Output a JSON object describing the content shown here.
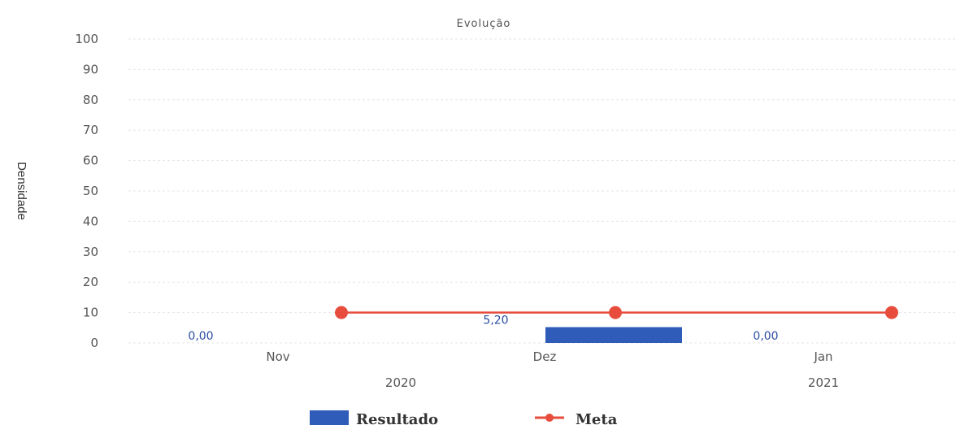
{
  "chart_data": {
    "type": "bar",
    "title": "Evolução",
    "ylabel": "Densidade",
    "xlabel": "",
    "ylim": [
      0,
      100
    ],
    "yticks": [
      0,
      10,
      20,
      30,
      40,
      50,
      60,
      70,
      80,
      90,
      100
    ],
    "months": [
      "Nov",
      "Dez",
      "Jan"
    ],
    "years": [
      {
        "label": "2020",
        "month_index": 0.5
      },
      {
        "label": "2021",
        "month_index": 2
      }
    ],
    "series": [
      {
        "name": "Resultado",
        "kind": "bar",
        "color": "#2e5cb8",
        "values": [
          0,
          5.2,
          0
        ],
        "labels": [
          "0,00",
          "5,20",
          "0,00"
        ]
      },
      {
        "name": "Meta",
        "kind": "line",
        "color": "#e74c3c",
        "values": [
          10,
          10,
          10
        ]
      }
    ],
    "legend": "bottom-center",
    "grid": true
  }
}
